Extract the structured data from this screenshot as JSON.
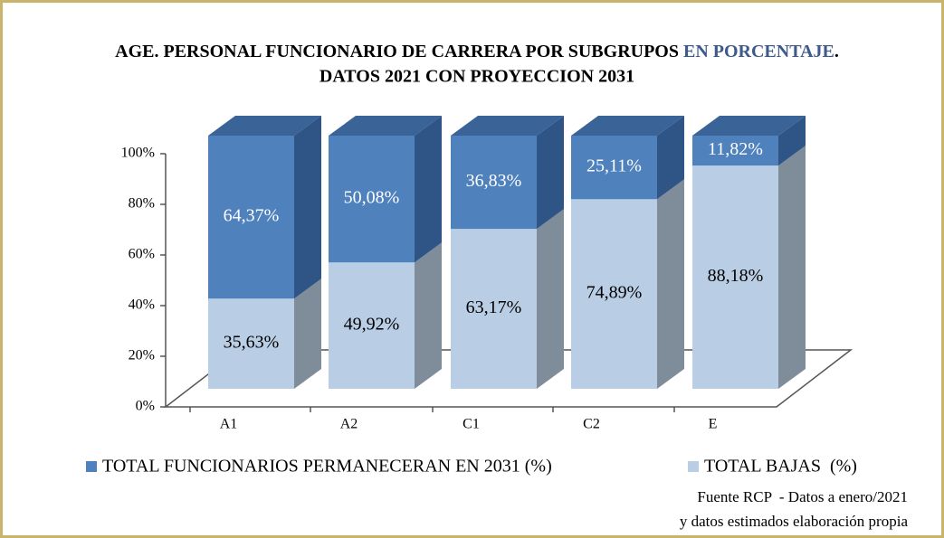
{
  "chart_data": {
    "type": "bar3d_stacked",
    "title": [
      "AGE. PERSONAL FUNCIONARIO DE CARRERA POR SUBGRUPOS ",
      "EN PORCENTAJE",
      "."
    ],
    "subtitle": "DATOS 2021 CON PROYECCION 2031",
    "categories": [
      "A1",
      "A2",
      "C1",
      "C2",
      "E"
    ],
    "series": [
      {
        "name": "TOTAL FUNCIONARIOS PERMANECERAN EN 2031 (%)",
        "color": "#4f81bd",
        "values": [
          64.37,
          50.08,
          36.83,
          25.11,
          11.82
        ],
        "value_labels": [
          "64,37%",
          "50,08%",
          "36,83%",
          "25,11%",
          "11,82%"
        ]
      },
      {
        "name": "TOTAL BAJAS  (%)",
        "color": "#b9cde5",
        "values": [
          35.63,
          49.92,
          63.17,
          74.89,
          88.18
        ],
        "value_labels": [
          "35,63%",
          "49,92%",
          "63,17%",
          "74,89%",
          "88,18%"
        ]
      }
    ],
    "ylim": [
      0,
      100
    ],
    "yticks": [
      {
        "value": 0,
        "label": "0%"
      },
      {
        "value": 20,
        "label": "20%"
      },
      {
        "value": 40,
        "label": "40%"
      },
      {
        "value": 60,
        "label": "60%"
      },
      {
        "value": 80,
        "label": "80%"
      },
      {
        "value": 100,
        "label": "100%"
      }
    ],
    "source": [
      "Fuente RCP  - Datos a enero/2021",
      "y datos estimados elaboración propia"
    ]
  }
}
